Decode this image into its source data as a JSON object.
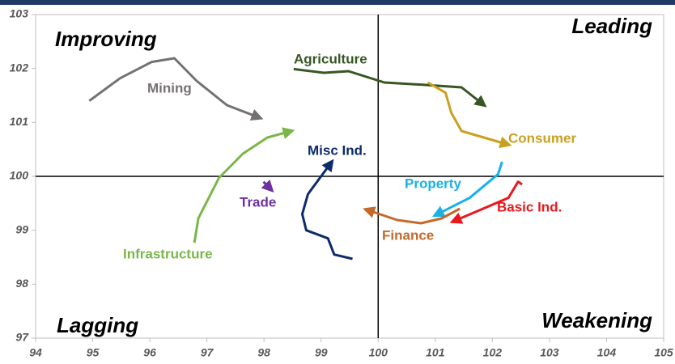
{
  "chart_data": {
    "type": "line",
    "xlim": [
      94,
      105
    ],
    "xticks": [
      94,
      95,
      96,
      97,
      98,
      99,
      100,
      101,
      102,
      103,
      104,
      105
    ],
    "ylim": [
      97,
      103
    ],
    "yticks": [
      97,
      98,
      99,
      100,
      101,
      102,
      103
    ],
    "center": {
      "x": 100,
      "y": 100
    },
    "annotations": [
      "Improving",
      "Leading",
      "Lagging",
      "Weakening"
    ],
    "series": [
      {
        "name": "Mining",
        "color": "#767171",
        "x": [
          94.94,
          95.48,
          96.03,
          96.43,
          96.82,
          97.35,
          97.89
        ],
        "values": [
          101.4,
          101.82,
          102.12,
          102.19,
          101.77,
          101.32,
          101.1
        ]
      },
      {
        "name": "Agriculture",
        "color": "#375623",
        "x": [
          98.52,
          99.05,
          99.48,
          100.11,
          100.75,
          101.46,
          101.82
        ],
        "values": [
          101.99,
          101.92,
          101.95,
          101.74,
          101.7,
          101.65,
          101.35
        ]
      },
      {
        "name": "Consumer",
        "color": "#c9a11f",
        "x": [
          100.87,
          101.18,
          101.28,
          101.46,
          102.24
        ],
        "values": [
          101.74,
          101.55,
          101.18,
          100.84,
          100.6
        ]
      },
      {
        "name": "Property",
        "color": "#1ab0e8",
        "x": [
          102.17,
          102.1,
          101.6,
          101.04
        ],
        "values": [
          100.27,
          100.04,
          99.6,
          99.3
        ]
      },
      {
        "name": "Basic Ind.",
        "color": "#e8191e",
        "x": [
          102.52,
          102.45,
          102.28,
          101.35
        ],
        "values": [
          99.85,
          99.9,
          99.6,
          99.18
        ]
      },
      {
        "name": "Finance",
        "color": "#c5692a",
        "x": [
          101.43,
          101.11,
          100.75,
          100.33,
          99.83
        ],
        "values": [
          99.4,
          99.22,
          99.13,
          99.19,
          99.37
        ]
      },
      {
        "name": "Misc Ind.",
        "color": "#0d2a6a",
        "x": [
          99.55,
          99.23,
          99.12,
          98.74,
          98.67,
          98.77,
          99.16
        ],
        "values": [
          98.47,
          98.55,
          98.85,
          99.0,
          99.3,
          99.67,
          100.23
        ]
      },
      {
        "name": "Infrastructure",
        "color": "#7ab648",
        "x": [
          96.78,
          96.85,
          97.21,
          97.63,
          98.06,
          98.44
        ],
        "values": [
          98.77,
          99.22,
          99.97,
          100.42,
          100.72,
          100.83
        ]
      },
      {
        "name": "Trade",
        "color": "#7030a0",
        "x": [
          97.99,
          98.1
        ],
        "values": [
          99.9,
          99.78
        ]
      }
    ]
  }
}
